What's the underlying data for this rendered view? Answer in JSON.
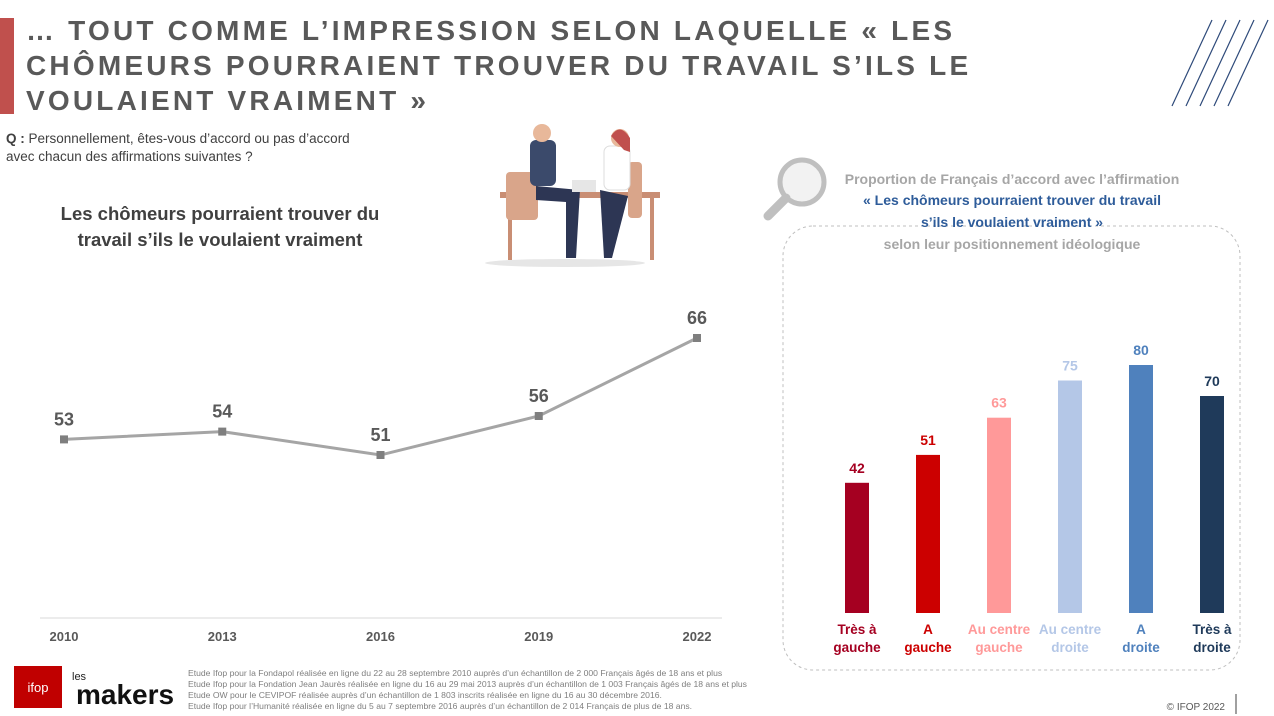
{
  "header": {
    "title_lines": [
      "… TOUT COMME L’IMPRESSION SELON LAQUELLE « LES",
      "CHÔMEURS POURRAIENT TROUVER DU TRAVAIL S’ILS LE",
      "VOULAIENT VRAIMENT »"
    ],
    "question_label": "Q :",
    "question_lines": [
      "Personnellement, êtes-vous d’accord ou pas d’accord",
      "avec chacun des affirmations suivantes ?"
    ]
  },
  "chart_data": [
    {
      "type": "line",
      "title_lines": [
        "Les chômeurs pourraient trouver du",
        "travail s’ils le voulaient vraiment"
      ],
      "categories": [
        "2010",
        "2013",
        "2016",
        "2019",
        "2022"
      ],
      "values": [
        53,
        54,
        51,
        56,
        66
      ],
      "color": "#a5a5a5",
      "marker_color": "#7f7f7f",
      "ylim": [
        30,
        70
      ]
    },
    {
      "type": "bar",
      "subtitle_lines": [
        "Proportion de Français d’accord avec l’affirmation",
        "« Les chômeurs pourraient trouver du travail",
        "s’ils le voulaient vraiment »",
        "selon leur positionnement idéologique"
      ],
      "categories": [
        "Très à gauche",
        "A gauche",
        "Au centre gauche",
        "Au centre droite",
        "A droite",
        "Très à droite"
      ],
      "values": [
        42,
        51,
        63,
        75,
        80,
        70
      ],
      "colors": [
        "#a50021",
        "#cc0000",
        "#ff9999",
        "#b4c7e7",
        "#4f81bd",
        "#1f3a5a"
      ],
      "ylim": [
        0,
        100
      ]
    }
  ],
  "footer": {
    "logo_ifop": "ifop",
    "logo_les": "les",
    "logo_makers": "makers",
    "notes": [
      "Etude Ifop pour la Fondapol réalisée en ligne du 22 au 28 septembre 2010 auprès d’un échantillon de 2 000 Français âgés de 18 ans et plus",
      "Etude Ifop pour la Fondation Jean Jaurès réalisée en ligne du 16 au 29 mai 2013 auprès d’un échantillon de 1 003 Français âgés de 18 ans et plus",
      "Etude OW pour le CEVIPOF réalisée auprès d’un échantillon de 1 803 inscrits réalisée en ligne du 16 au 30 décembre 2016.",
      "Etude Ifop pour l’Humanité réalisée en ligne du 5 au 7 septembre 2016 auprès d’un échantillon de 2 014 Français de plus de 18 ans."
    ],
    "copyright": "© IFOP 2022"
  }
}
